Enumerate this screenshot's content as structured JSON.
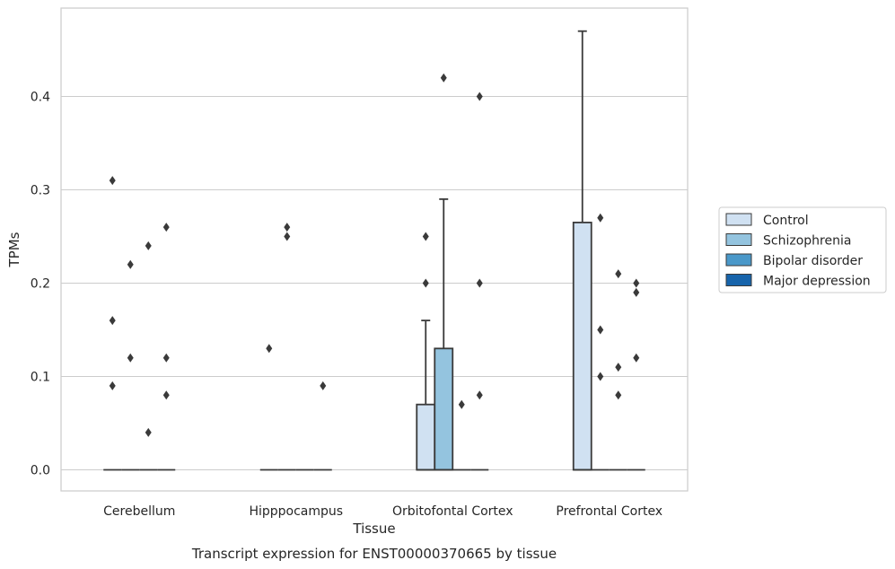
{
  "chart_data": {
    "type": "boxplot",
    "caption": "Transcript expression for ENST00000370665 by tissue",
    "xlabel": "Tissue",
    "ylabel": "TPMs",
    "ylim": [
      -0.023,
      0.492
    ],
    "yticks": [
      0.0,
      0.1,
      0.2,
      0.3,
      0.4
    ],
    "ytick_labels": [
      "0.0",
      "0.1",
      "0.2",
      "0.3",
      "0.4"
    ],
    "grid": "horizontal",
    "legend_position": "right",
    "categories": [
      "Cerebellum",
      "Hipppocampus",
      "Orbitofontal Cortex",
      "Prefrontal Cortex"
    ],
    "series": [
      {
        "name": "Control",
        "color": "#d0e1f2"
      },
      {
        "name": "Schizophrenia",
        "color": "#94c4df"
      },
      {
        "name": "Bipolar disorder",
        "color": "#4a98c9"
      },
      {
        "name": "Major depression",
        "color": "#1764ab"
      }
    ],
    "boxes": [
      [
        {
          "q1": 0,
          "median": 0,
          "q3": 0,
          "whisker_high": 0,
          "outliers": [
            0.31,
            0.16,
            0.09
          ]
        },
        {
          "q1": 0,
          "median": 0,
          "q3": 0,
          "whisker_high": 0,
          "outliers": [
            0.22,
            0.12
          ]
        },
        {
          "q1": 0,
          "median": 0,
          "q3": 0,
          "whisker_high": 0,
          "outliers": [
            0.24,
            0.04
          ]
        },
        {
          "q1": 0,
          "median": 0,
          "q3": 0,
          "whisker_high": 0,
          "outliers": [
            0.26,
            0.12,
            0.08
          ]
        }
      ],
      [
        {
          "q1": 0,
          "median": 0,
          "q3": 0,
          "whisker_high": 0,
          "outliers": [
            0.13
          ]
        },
        {
          "q1": 0,
          "median": 0,
          "q3": 0,
          "whisker_high": 0,
          "outliers": [
            0.26,
            0.25
          ]
        },
        {
          "q1": 0,
          "median": 0,
          "q3": 0,
          "whisker_high": 0,
          "outliers": []
        },
        {
          "q1": 0,
          "median": 0,
          "q3": 0,
          "whisker_high": 0,
          "outliers": [
            0.09
          ]
        }
      ],
      [
        {
          "q1": 0,
          "median": 0,
          "q3": 0.07,
          "whisker_high": 0.16,
          "outliers": [
            0.25,
            0.2
          ]
        },
        {
          "q1": 0,
          "median": 0,
          "q3": 0.13,
          "whisker_high": 0.29,
          "outliers": [
            0.42
          ]
        },
        {
          "q1": 0,
          "median": 0,
          "q3": 0,
          "whisker_high": 0,
          "outliers": [
            0.07
          ]
        },
        {
          "q1": 0,
          "median": 0,
          "q3": 0,
          "whisker_high": 0,
          "outliers": [
            0.4,
            0.2,
            0.08
          ]
        }
      ],
      [
        {
          "q1": 0,
          "median": 0,
          "q3": 0.265,
          "whisker_high": 0.47,
          "outliers": []
        },
        {
          "q1": 0,
          "median": 0,
          "q3": 0,
          "whisker_high": 0,
          "outliers": [
            0.27,
            0.15,
            0.1
          ]
        },
        {
          "q1": 0,
          "median": 0,
          "q3": 0,
          "whisker_high": 0,
          "outliers": [
            0.21,
            0.11,
            0.08
          ]
        },
        {
          "q1": 0,
          "median": 0,
          "q3": 0,
          "whisker_high": 0,
          "outliers": [
            0.2,
            0.19,
            0.12
          ]
        }
      ]
    ]
  }
}
